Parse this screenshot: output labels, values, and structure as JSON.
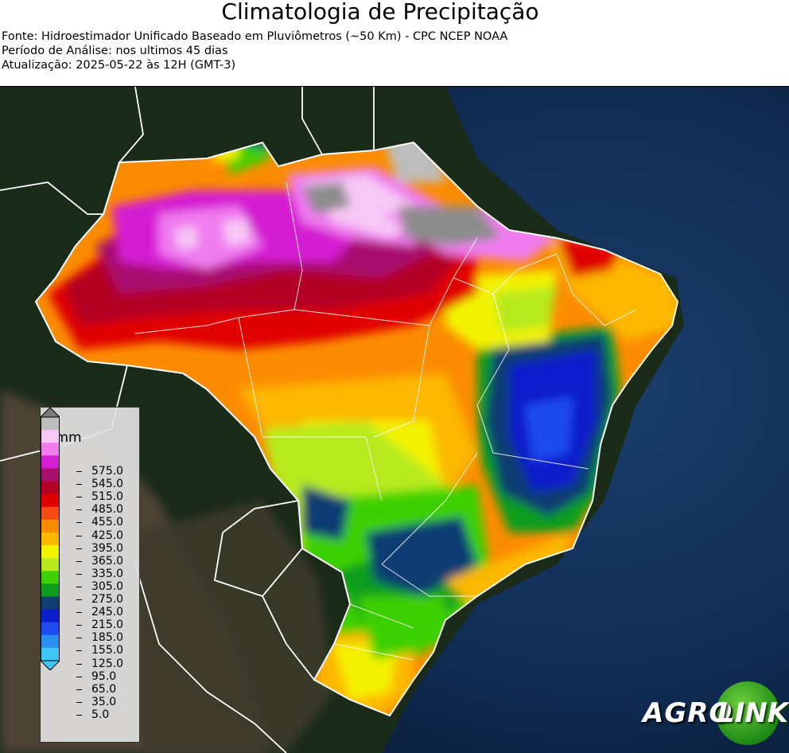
{
  "header": {
    "title": "Climatologia de Precipitação",
    "source": "Fonte: Hidroestimador Unificado Baseado em Pluviômetros (~50 Km) - CPC NCEP NOAA",
    "period": "Período de Análise: nos ultimos 45 dias",
    "updated": "Atualização: 2025-05-22 às 12H (GMT-3)"
  },
  "legend": {
    "unit": "mm",
    "labels": [
      "575.0",
      "545.0",
      "515.0",
      "485.0",
      "455.0",
      "425.0",
      "395.0",
      "365.0",
      "335.0",
      "305.0",
      "275.0",
      "245.0",
      "215.0",
      "185.0",
      "155.0",
      "125.0",
      "95.0",
      "65.0",
      "35.0",
      "5.0"
    ],
    "colors": [
      "#8c8c8c",
      "#bdbdbd",
      "#f7c8f5",
      "#f07cf0",
      "#d41ed2",
      "#a8106e",
      "#b30022",
      "#e00000",
      "#f54a10",
      "#fb8c00",
      "#fdb800",
      "#f3f300",
      "#b6ea1c",
      "#3ed000",
      "#0e9d1a",
      "#0e3e72",
      "#0a1ecc",
      "#1e4cf0",
      "#2a90f0",
      "#40c8f5"
    ],
    "over_color": "#7a7a7a",
    "under_color": "#40c8f5"
  },
  "logo": {
    "text_left": "AGRO",
    "text_right": "LINK",
    "accent": "#2a9a1c"
  }
}
